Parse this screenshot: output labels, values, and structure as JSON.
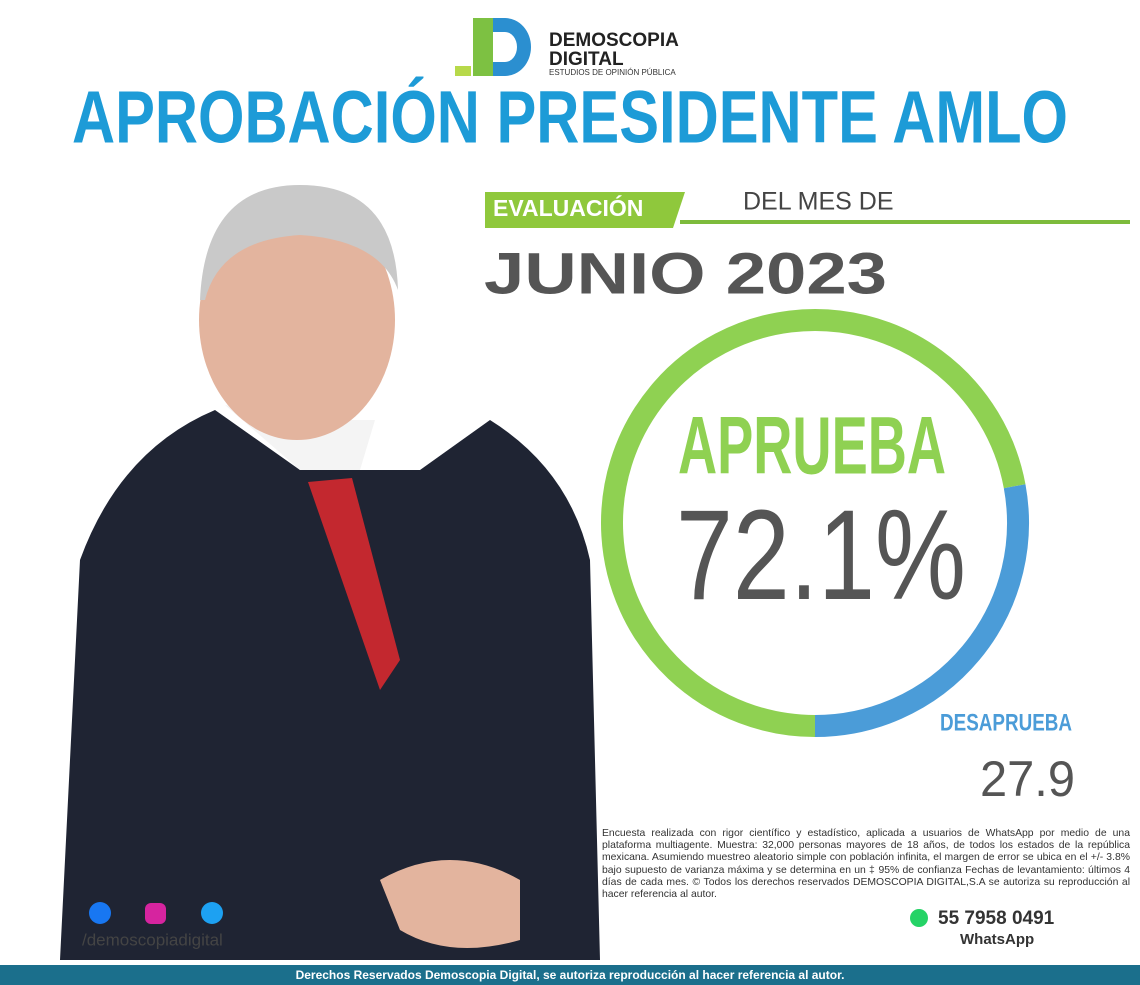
{
  "brand": {
    "name": "DEMOSCOPIA",
    "name2": "DIGITAL",
    "tagline": "ESTUDIOS DE OPINIÓN PÚBLICA"
  },
  "chart_data": {
    "type": "donut",
    "title": "APROBACIÓN PRESIDENTE AMLO",
    "badge": "EVALUACIÓN",
    "subtitle": "DEL MES DE",
    "period": "JUNIO 2023",
    "categories": [
      "APRUEBA",
      "DESAPRUEBA"
    ],
    "values": [
      72.1,
      27.9
    ],
    "value_labels": [
      "72.1%",
      "27.9"
    ],
    "colors": [
      "#8fd152",
      "#4b9cd8"
    ]
  },
  "note": "Encuesta realizada con rigor científico y estadístico, aplicada a usuarios de WhatsApp por medio de una plataforma multiagente. Muestra: 32,000 personas mayores de 18 años, de todos los estados de la república mexicana. Asumiendo muestreo aleatorio simple con población infinita, el margen de error se ubica en el +/- 3.8% bajo supuesto de varianza máxima y se determina en un ‡ 95% de confianza Fechas de levantamiento: últimos 4 días de cada mes. © Todos los derechos reservados DEMOSCOPIA DIGITAL,S.A se autoriza su reproducción al hacer referencia al autor.",
  "contact": {
    "phone": "55 7958 0491",
    "app": "WhatsApp",
    "social": "/demoscopiadigital"
  },
  "footer": "Derechos Reservados Demoscopia Digital, se autoriza reproducción al hacer referencia al autor."
}
